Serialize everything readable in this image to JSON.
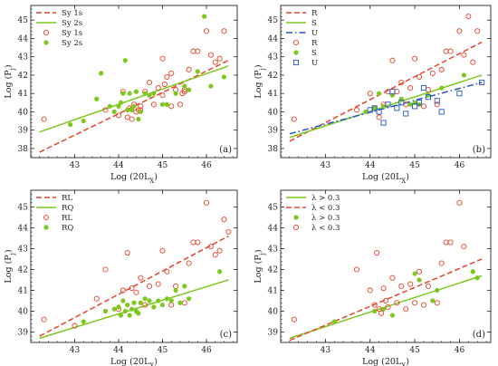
{
  "colors": {
    "red": "#e8452c",
    "green": "#7cc81e",
    "blue": "#2255cc"
  },
  "chart_data": [
    {
      "type": "scatter",
      "panel_label": "(a)",
      "xlabel": "Log (20L_X)",
      "ylabel": "Log (P_j)",
      "xlim": [
        42,
        46.7
      ],
      "ylim": [
        37.5,
        45.8
      ],
      "xticks": [
        43,
        44,
        45,
        46
      ],
      "yticks": [
        38,
        39,
        40,
        41,
        42,
        43,
        44,
        45
      ],
      "legend": "top-left",
      "lines": [
        {
          "name": "Sy 1s",
          "color": "#e8452c",
          "style": "dashed",
          "x": [
            42.2,
            46.5
          ],
          "y": [
            37.8,
            42.8
          ]
        },
        {
          "name": "Sy 2s",
          "color": "#7cc81e",
          "style": "solid",
          "x": [
            42.2,
            46.5
          ],
          "y": [
            38.9,
            42.5
          ]
        }
      ],
      "series": [
        {
          "name": "Sy 1s",
          "marker": "open-circle",
          "color": "#e8452c",
          "x": [
            42.3,
            43.7,
            44.0,
            44.2,
            44.25,
            44.3,
            44.35,
            44.4,
            44.45,
            44.5,
            44.6,
            44.7,
            44.9,
            45.0,
            45.05,
            45.1,
            45.2,
            45.3,
            45.4,
            45.45,
            45.5,
            45.6,
            45.7,
            45.8,
            46.0,
            46.1,
            46.2,
            46.3,
            46.4,
            44.1,
            44.5,
            44.8,
            45.0,
            45.2,
            45.5
          ],
          "y": [
            39.6,
            40.1,
            39.8,
            39.7,
            40.2,
            39.6,
            40.4,
            40.0,
            40.1,
            40.3,
            41.1,
            41.6,
            41.3,
            42.9,
            41.5,
            41.9,
            40.3,
            41.2,
            40.4,
            41.0,
            41.1,
            42.3,
            43.3,
            43.3,
            44.4,
            43.1,
            42.7,
            42.9,
            44.4,
            41.1,
            40.1,
            40.4,
            40.9,
            42.1,
            41.2
          ]
        },
        {
          "name": "Sy 2s",
          "marker": "filled-circle",
          "color": "#7cc81e",
          "x": [
            42.9,
            43.2,
            43.5,
            43.6,
            43.8,
            43.9,
            44.0,
            44.1,
            44.15,
            44.2,
            44.25,
            44.3,
            44.35,
            44.4,
            44.5,
            44.6,
            44.7,
            44.8,
            45.0,
            45.1,
            45.3,
            45.5,
            45.6,
            45.8,
            45.95,
            46.1,
            46.4,
            44.05,
            44.45
          ],
          "y": [
            39.3,
            39.5,
            40.7,
            42.1,
            40.3,
            40.0,
            40.3,
            41.0,
            42.8,
            40.1,
            41.0,
            40.1,
            40.3,
            41.1,
            40.0,
            41.0,
            40.9,
            41.0,
            40.4,
            40.4,
            41.0,
            41.4,
            41.2,
            42.2,
            45.2,
            41.4,
            41.9,
            40.5,
            39.6
          ]
        }
      ]
    },
    {
      "type": "scatter",
      "panel_label": "(b)",
      "xlabel": "Log (20L_X)",
      "ylabel": "Log (P_j)",
      "xlim": [
        42,
        46.7
      ],
      "ylim": [
        37.5,
        45.8
      ],
      "xticks": [
        43,
        44,
        45,
        46
      ],
      "yticks": [
        38,
        39,
        40,
        41,
        42,
        43,
        44,
        45
      ],
      "legend": "top-left",
      "lines": [
        {
          "name": "R",
          "color": "#e8452c",
          "style": "dashed",
          "x": [
            42.2,
            46.5
          ],
          "y": [
            38.4,
            43.8
          ]
        },
        {
          "name": "S",
          "color": "#7cc81e",
          "style": "solid",
          "x": [
            42.2,
            46.5
          ],
          "y": [
            38.6,
            42.0
          ]
        },
        {
          "name": "U",
          "color": "#2255cc",
          "style": "dashdot",
          "x": [
            42.2,
            46.5
          ],
          "y": [
            38.8,
            41.6
          ]
        }
      ],
      "series": [
        {
          "name": "R",
          "marker": "open-circle",
          "color": "#e8452c",
          "x": [
            42.3,
            43.7,
            44.0,
            44.2,
            44.3,
            44.4,
            44.5,
            44.6,
            44.7,
            44.9,
            45.0,
            45.1,
            45.2,
            45.3,
            45.5,
            45.6,
            45.7,
            45.8,
            46.0,
            46.1,
            46.2,
            46.3,
            46.4,
            44.1,
            44.8,
            45.4
          ],
          "y": [
            39.6,
            40.1,
            41.0,
            39.7,
            40.4,
            41.1,
            42.8,
            41.1,
            41.6,
            41.3,
            42.9,
            41.9,
            40.3,
            41.2,
            40.4,
            42.3,
            43.3,
            43.3,
            44.4,
            43.1,
            45.2,
            42.7,
            44.4,
            40.2,
            40.4,
            42.1
          ]
        },
        {
          "name": "S",
          "marker": "filled-circle",
          "color": "#7cc81e",
          "x": [
            43.9,
            44.1,
            44.2,
            44.3,
            44.5,
            44.7,
            44.9,
            45.0,
            45.1,
            45.3,
            45.6,
            46.1
          ],
          "y": [
            40.0,
            40.2,
            41.0,
            40.3,
            40.9,
            40.7,
            40.4,
            40.5,
            40.4,
            40.9,
            41.3,
            42.0
          ]
        },
        {
          "name": "U",
          "marker": "open-square",
          "color": "#2255cc",
          "x": [
            44.0,
            44.1,
            44.2,
            44.3,
            44.4,
            44.5,
            44.6,
            44.7,
            44.8,
            45.0,
            45.1,
            45.2,
            45.3,
            45.5,
            45.6,
            46.0,
            46.5
          ],
          "y": [
            40.1,
            40.2,
            40.0,
            39.4,
            40.4,
            41.1,
            40.2,
            40.5,
            39.9,
            40.3,
            40.5,
            41.3,
            40.8,
            40.6,
            40.0,
            41.0,
            41.6
          ]
        }
      ]
    },
    {
      "type": "scatter",
      "panel_label": "(c)",
      "xlabel": "Log (20L_X)",
      "ylabel": "Log (P_j)",
      "xlim": [
        42,
        46.7
      ],
      "ylim": [
        38.5,
        45.8
      ],
      "xticks": [
        43,
        44,
        45,
        46
      ],
      "yticks": [
        39,
        40,
        41,
        42,
        43,
        44,
        45
      ],
      "legend": "top-left",
      "lines": [
        {
          "name": "RL",
          "color": "#e8452c",
          "style": "dashed",
          "x": [
            42.2,
            46.5
          ],
          "y": [
            38.8,
            43.6
          ]
        },
        {
          "name": "RQ",
          "color": "#7cc81e",
          "style": "solid",
          "x": [
            42.2,
            46.5
          ],
          "y": [
            38.7,
            41.5
          ]
        }
      ],
      "series": [
        {
          "name": "RL",
          "marker": "open-circle",
          "color": "#e8452c",
          "x": [
            42.3,
            43.0,
            43.5,
            43.7,
            44.0,
            44.1,
            44.2,
            44.3,
            44.4,
            44.5,
            44.6,
            44.7,
            44.9,
            45.0,
            45.1,
            45.2,
            45.3,
            45.5,
            45.6,
            45.7,
            45.8,
            46.0,
            46.1,
            46.2,
            46.3,
            46.4,
            46.5
          ],
          "y": [
            39.6,
            39.3,
            40.6,
            42.0,
            40.1,
            41.0,
            42.8,
            41.1,
            40.9,
            41.6,
            40.3,
            41.2,
            41.3,
            42.9,
            41.9,
            40.3,
            41.2,
            40.4,
            42.3,
            43.3,
            43.3,
            45.2,
            43.1,
            42.7,
            42.9,
            44.4,
            43.8
          ]
        },
        {
          "name": "RQ",
          "marker": "filled-circle",
          "color": "#7cc81e",
          "x": [
            43.2,
            43.7,
            43.9,
            44.0,
            44.05,
            44.1,
            44.15,
            44.2,
            44.25,
            44.3,
            44.35,
            44.4,
            44.45,
            44.5,
            44.6,
            44.7,
            44.8,
            44.9,
            45.0,
            45.1,
            45.2,
            45.3,
            45.4,
            45.5,
            45.6,
            46.3
          ],
          "y": [
            39.5,
            40.0,
            40.1,
            40.2,
            39.8,
            40.5,
            40.0,
            40.3,
            39.8,
            40.1,
            40.4,
            40.0,
            39.9,
            40.4,
            40.6,
            40.5,
            40.2,
            40.5,
            40.3,
            40.6,
            40.5,
            41.0,
            40.4,
            41.2,
            40.6,
            41.9
          ]
        }
      ]
    },
    {
      "type": "scatter",
      "panel_label": "(d)",
      "xlabel": "Log (20L_X)",
      "ylabel": "Log (P_j)",
      "xlim": [
        42,
        46.7
      ],
      "ylim": [
        38.5,
        45.8
      ],
      "xticks": [
        43,
        44,
        45,
        46
      ],
      "yticks": [
        39,
        40,
        41,
        42,
        43,
        44,
        45
      ],
      "legend": "top-left",
      "lines": [
        {
          "name": "λ > 0.3",
          "color": "#7cc81e",
          "style": "solid",
          "x": [
            42.2,
            46.5
          ],
          "y": [
            38.7,
            41.7
          ]
        },
        {
          "name": "λ < 0.3",
          "color": "#e8452c",
          "style": "dashed",
          "x": [
            42.2,
            46.5
          ],
          "y": [
            38.6,
            42.5
          ]
        }
      ],
      "series": [
        {
          "name": "λ > 0.3",
          "marker": "filled-circle",
          "color": "#7cc81e",
          "x": [
            43.2,
            44.1,
            44.3,
            44.5,
            45.0,
            45.1,
            45.4,
            45.5,
            46.3,
            46.4
          ],
          "y": [
            39.5,
            40.0,
            40.1,
            39.8,
            41.8,
            41.5,
            40.5,
            41.0,
            41.9,
            41.6
          ]
        },
        {
          "name": "λ < 0.3",
          "marker": "open-circle",
          "color": "#e8452c",
          "x": [
            42.3,
            43.7,
            44.0,
            44.1,
            44.15,
            44.2,
            44.25,
            44.3,
            44.35,
            44.4,
            44.5,
            44.6,
            44.7,
            44.8,
            44.9,
            45.0,
            45.1,
            45.2,
            45.3,
            45.5,
            45.6,
            45.7,
            45.8,
            46.0,
            46.1
          ],
          "y": [
            39.6,
            42.0,
            41.0,
            40.3,
            42.8,
            40.1,
            39.9,
            41.1,
            40.5,
            40.2,
            41.6,
            40.4,
            41.2,
            40.1,
            41.3,
            40.4,
            41.9,
            40.3,
            41.2,
            40.4,
            42.3,
            43.3,
            43.3,
            45.2,
            43.1
          ]
        }
      ]
    }
  ]
}
